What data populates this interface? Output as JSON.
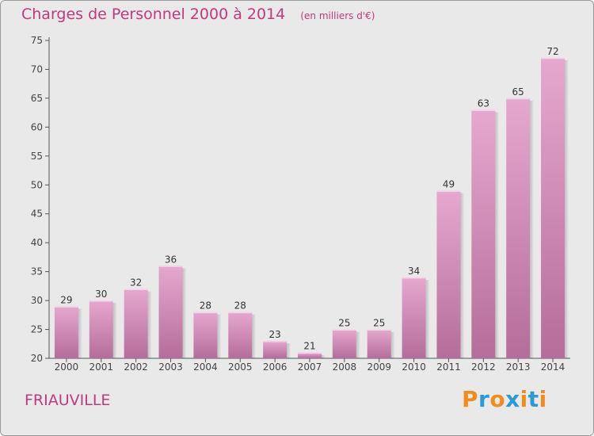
{
  "title": "Charges de Personnel 2000 à 2014",
  "unit_note": "(en milliers d'€)",
  "commune": "FRIAUVILLE",
  "brand": "Proxiti",
  "colors": {
    "accent": "#c0397e",
    "bar_light": "#e6a8cf",
    "bar_dark": "#b56d9a",
    "background": "#e9e9e9",
    "brand_letters": [
      "#f28c1c",
      "#2a9bd6",
      "#f28c1c",
      "#2a9bd6",
      "#f28c1c",
      "#2a9bd6",
      "#f28c1c"
    ]
  },
  "chart_data": {
    "type": "bar",
    "title": "Charges de Personnel 2000 à 2014",
    "xlabel": "",
    "ylabel": "",
    "categories": [
      "2000",
      "2001",
      "2002",
      "2003",
      "2004",
      "2005",
      "2006",
      "2007",
      "2008",
      "2009",
      "2010",
      "2011",
      "2012",
      "2013",
      "2014"
    ],
    "values": [
      29,
      30,
      32,
      36,
      28,
      28,
      23,
      21,
      25,
      25,
      34,
      49,
      63,
      65,
      72
    ],
    "ylim": [
      20,
      75
    ],
    "yticks": [
      20,
      25,
      30,
      35,
      40,
      45,
      50,
      55,
      60,
      65,
      70,
      75
    ],
    "grid": false,
    "data_labels": true
  }
}
